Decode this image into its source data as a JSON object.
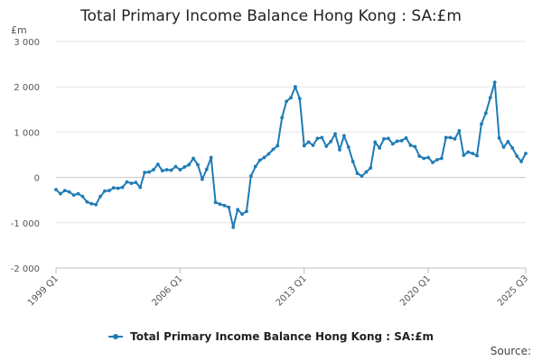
{
  "chart_data": {
    "type": "line",
    "title": "Total Primary Income Balance Hong Kong : SA:£m",
    "ylabel": "£m",
    "xlabel": "",
    "ylim": [
      -2000,
      3000
    ],
    "y_ticks": [
      "3 000",
      "2 000",
      "1 000",
      "0",
      "-1 000",
      "-2 000"
    ],
    "y_tick_values": [
      3000,
      2000,
      1000,
      0,
      -1000,
      -2000
    ],
    "x_tick_labels": [
      "1999 Q1",
      "2006 Q1",
      "2013 Q1",
      "2020 Q1",
      "2025 Q3"
    ],
    "x_tick_indices": [
      0,
      28,
      56,
      84,
      106
    ],
    "grid": true,
    "legend_position": "bottom",
    "series": [
      {
        "name": "Total Primary Income Balance Hong Kong : SA:£m",
        "color": "#1f7bb6",
        "values": [
          -270,
          -360,
          -290,
          -320,
          -390,
          -360,
          -420,
          -540,
          -580,
          -600,
          -420,
          -300,
          -290,
          -230,
          -240,
          -220,
          -100,
          -130,
          -110,
          -220,
          110,
          120,
          170,
          290,
          150,
          170,
          160,
          240,
          170,
          230,
          280,
          420,
          280,
          -40,
          180,
          440,
          -550,
          -590,
          -620,
          -660,
          -1100,
          -710,
          -810,
          -750,
          30,
          240,
          380,
          440,
          520,
          620,
          700,
          1320,
          1680,
          1760,
          2000,
          1740,
          700,
          780,
          710,
          860,
          880,
          690,
          790,
          960,
          610,
          920,
          670,
          350,
          90,
          30,
          120,
          210,
          780,
          650,
          850,
          860,
          740,
          800,
          810,
          870,
          710,
          680,
          470,
          420,
          440,
          330,
          390,
          420,
          880,
          880,
          850,
          1030,
          490,
          560,
          530,
          480,
          1180,
          1420,
          1760,
          2100,
          870,
          670,
          790,
          650,
          470,
          350,
          530
        ]
      }
    ]
  },
  "legend": {
    "label": "Total Primary Income Balance Hong Kong : SA:£m"
  },
  "source": {
    "label": "Source:"
  }
}
